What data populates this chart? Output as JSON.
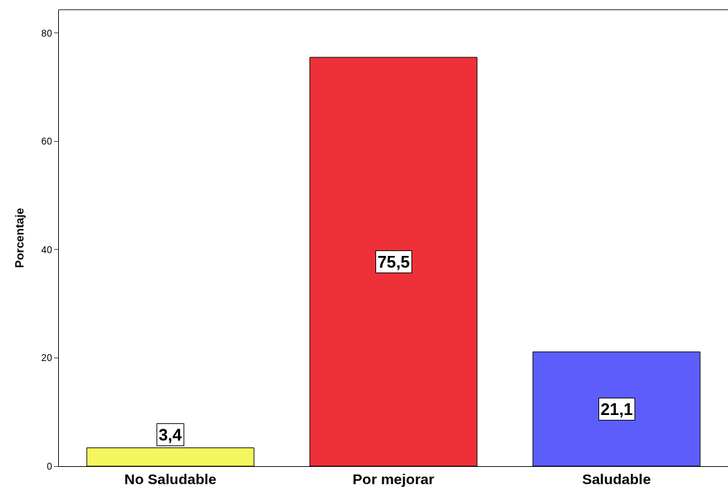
{
  "chart_data": {
    "type": "bar",
    "ylabel": "Porcentaje",
    "categories": [
      "No Saludable",
      "Por mejorar",
      "Saludable"
    ],
    "values": [
      3.4,
      75.5,
      21.1
    ],
    "colors": [
      "#f5f55e",
      "#ee3039",
      "#5d5dfc"
    ],
    "value_labels": [
      "3,4",
      "75,5",
      "21,1"
    ],
    "ylim": [
      0,
      84.3
    ],
    "yticks": [
      0,
      20,
      40,
      60,
      80
    ]
  }
}
